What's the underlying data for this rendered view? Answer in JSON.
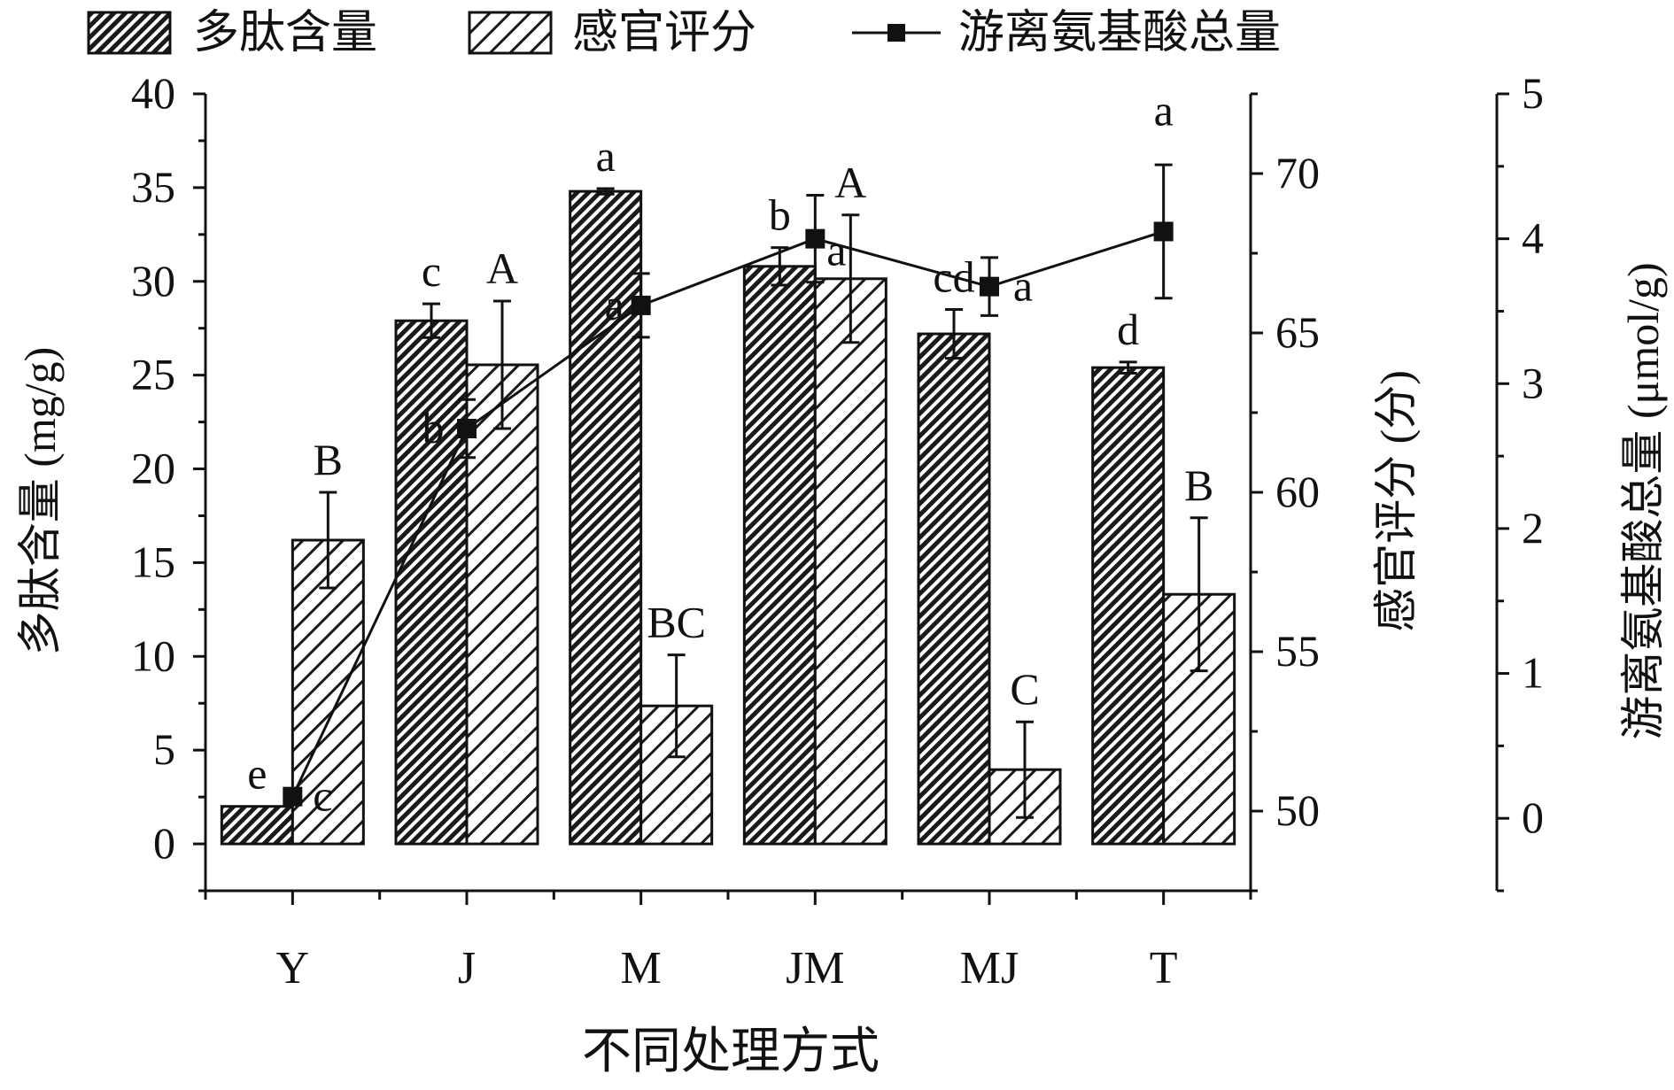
{
  "chart_data": {
    "type": "bar",
    "categories": [
      "Y",
      "J",
      "M",
      "JM",
      "MJ",
      "T"
    ],
    "xlabel": "不同处理方式",
    "left_axis": {
      "label": "多肽含量 (mg/g)",
      "range": [
        -2.5,
        40
      ],
      "ticks": [
        0,
        5,
        10,
        15,
        20,
        25,
        30,
        35,
        40
      ],
      "tick_labels": [
        "0",
        "5",
        "10",
        "15",
        "20",
        "25",
        "30",
        "35",
        "40"
      ]
    },
    "right_axis_1": {
      "label": "感官评分 (分)",
      "range": [
        47.5,
        72.5
      ],
      "ticks": [
        50,
        55,
        60,
        65,
        70
      ],
      "tick_labels": [
        "50",
        "55",
        "60",
        "65",
        "70"
      ]
    },
    "right_axis_2": {
      "label": "游离氨基酸总量 (μmol/g)",
      "range": [
        -0.5,
        5
      ],
      "ticks": [
        0,
        1,
        2,
        3,
        4,
        5
      ],
      "tick_labels": [
        "0",
        "1",
        "2",
        "3",
        "4",
        "5"
      ]
    },
    "series": [
      {
        "name": "多肽含量",
        "kind": "bar",
        "axis": "left",
        "values": [
          2.0,
          27.9,
          34.8,
          30.8,
          27.2,
          25.4
        ],
        "errors": [
          0.0,
          0.9,
          0.15,
          1.0,
          1.3,
          0.3
        ],
        "labels": [
          "e",
          "c",
          "a",
          "b",
          "cd",
          "d"
        ]
      },
      {
        "name": "感官评分",
        "kind": "bar",
        "axis": "right_1",
        "values": [
          58.5,
          64.0,
          53.3,
          66.7,
          51.3,
          56.8
        ],
        "errors": [
          1.5,
          2.0,
          1.6,
          2.0,
          1.5,
          2.4
        ],
        "labels": [
          "B",
          "A",
          "BC",
          "A",
          "C",
          "B"
        ]
      },
      {
        "name": "游离氨基酸总量",
        "kind": "line",
        "axis": "right_2",
        "values": [
          0.15,
          2.69,
          3.54,
          4.0,
          3.67,
          4.05
        ],
        "errors": [
          0.0,
          0.2,
          0.22,
          0.3,
          0.2,
          0.46
        ],
        "labels": [
          "c",
          "b",
          "a",
          "a",
          "a",
          "a"
        ]
      }
    ],
    "legend": {
      "position": "top"
    }
  }
}
